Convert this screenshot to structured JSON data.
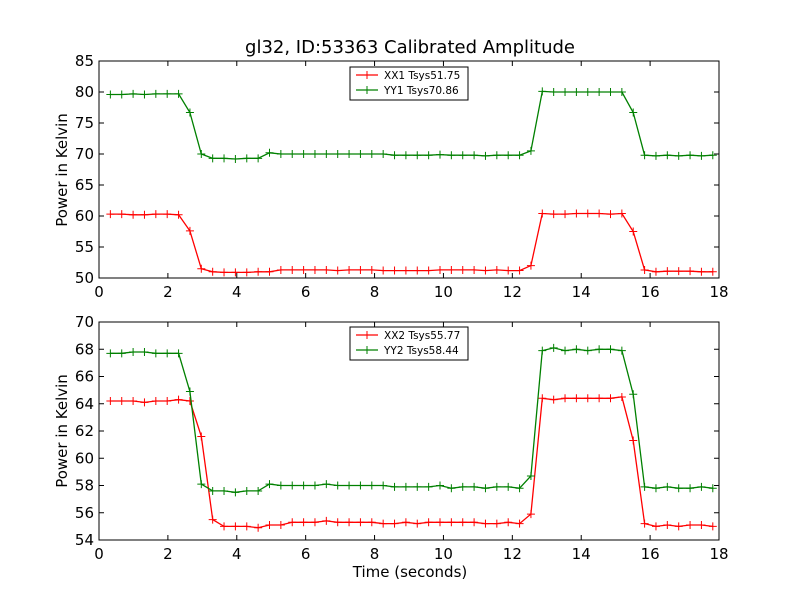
{
  "chart_data": [
    {
      "type": "line",
      "title": "gl32, ID:53363 Calibrated Amplitude",
      "xlabel": "",
      "ylabel": "Power in Kelvin",
      "xlim": [
        0,
        18
      ],
      "ylim": [
        50,
        85
      ],
      "xticks": [
        "0",
        "2",
        "4",
        "6",
        "8",
        "10",
        "12",
        "14",
        "16",
        "18"
      ],
      "yticks": [
        "50",
        "55",
        "60",
        "65",
        "70",
        "75",
        "80",
        "85"
      ],
      "legend_position": "top-center",
      "grid": false,
      "x": [
        0.33,
        0.66,
        0.99,
        1.32,
        1.65,
        1.98,
        2.31,
        2.64,
        2.97,
        3.3,
        3.63,
        3.96,
        4.29,
        4.62,
        4.95,
        5.28,
        5.61,
        5.94,
        6.27,
        6.6,
        6.93,
        7.26,
        7.59,
        7.92,
        8.25,
        8.58,
        8.91,
        9.24,
        9.57,
        9.9,
        10.23,
        10.56,
        10.89,
        11.22,
        11.55,
        11.88,
        12.21,
        12.54,
        12.87,
        13.2,
        13.53,
        13.86,
        14.19,
        14.52,
        14.85,
        15.18,
        15.51,
        15.84,
        16.17,
        16.5,
        16.83,
        17.16,
        17.49,
        17.82
      ],
      "series": [
        {
          "name": "XX1 Tsys51.75",
          "color": "#ff0000",
          "values": [
            60.3,
            60.3,
            60.2,
            60.2,
            60.3,
            60.3,
            60.2,
            57.6,
            51.5,
            51.0,
            50.9,
            50.9,
            50.9,
            51.0,
            51.0,
            51.3,
            51.3,
            51.3,
            51.3,
            51.3,
            51.2,
            51.3,
            51.3,
            51.3,
            51.2,
            51.2,
            51.2,
            51.2,
            51.2,
            51.3,
            51.3,
            51.3,
            51.3,
            51.2,
            51.3,
            51.2,
            51.2,
            52.0,
            60.4,
            60.3,
            60.3,
            60.4,
            60.4,
            60.4,
            60.3,
            60.4,
            57.5,
            51.3,
            51.0,
            51.1,
            51.1,
            51.1,
            51.0,
            51.0
          ]
        },
        {
          "name": "YY1 Tsys70.86",
          "color": "#008000",
          "values": [
            79.6,
            79.6,
            79.7,
            79.6,
            79.7,
            79.7,
            79.7,
            76.7,
            70.0,
            69.3,
            69.3,
            69.2,
            69.3,
            69.3,
            70.2,
            70.0,
            70.0,
            70.0,
            70.0,
            70.0,
            70.0,
            70.0,
            70.0,
            70.0,
            70.0,
            69.8,
            69.8,
            69.8,
            69.8,
            69.9,
            69.8,
            69.8,
            69.8,
            69.7,
            69.8,
            69.8,
            69.8,
            70.5,
            80.1,
            80.0,
            80.0,
            80.0,
            80.0,
            80.0,
            80.0,
            80.0,
            76.7,
            69.8,
            69.7,
            69.8,
            69.7,
            69.8,
            69.7,
            69.8
          ]
        }
      ]
    },
    {
      "type": "line",
      "title": "",
      "xlabel": "Time (seconds)",
      "ylabel": "Power in Kelvin",
      "xlim": [
        0,
        18
      ],
      "ylim": [
        54,
        70
      ],
      "xticks": [
        "0",
        "2",
        "4",
        "6",
        "8",
        "10",
        "12",
        "14",
        "16",
        "18"
      ],
      "yticks": [
        "54",
        "56",
        "58",
        "60",
        "62",
        "64",
        "66",
        "68",
        "70"
      ],
      "legend_position": "top-center",
      "grid": false,
      "x": [
        0.33,
        0.66,
        0.99,
        1.32,
        1.65,
        1.98,
        2.31,
        2.64,
        2.97,
        3.3,
        3.63,
        3.96,
        4.29,
        4.62,
        4.95,
        5.28,
        5.61,
        5.94,
        6.27,
        6.6,
        6.93,
        7.26,
        7.59,
        7.92,
        8.25,
        8.58,
        8.91,
        9.24,
        9.57,
        9.9,
        10.23,
        10.56,
        10.89,
        11.22,
        11.55,
        11.88,
        12.21,
        12.54,
        12.87,
        13.2,
        13.53,
        13.86,
        14.19,
        14.52,
        14.85,
        15.18,
        15.51,
        15.84,
        16.17,
        16.5,
        16.83,
        17.16,
        17.49,
        17.82
      ],
      "series": [
        {
          "name": "XX2 Tsys55.77",
          "color": "#ff0000",
          "values": [
            64.2,
            64.2,
            64.2,
            64.1,
            64.2,
            64.2,
            64.3,
            64.2,
            61.6,
            55.5,
            55.0,
            55.0,
            55.0,
            54.9,
            55.1,
            55.1,
            55.3,
            55.3,
            55.3,
            55.4,
            55.3,
            55.3,
            55.3,
            55.3,
            55.2,
            55.2,
            55.3,
            55.2,
            55.3,
            55.3,
            55.3,
            55.3,
            55.3,
            55.2,
            55.2,
            55.3,
            55.2,
            55.9,
            64.4,
            64.3,
            64.4,
            64.4,
            64.4,
            64.4,
            64.4,
            64.5,
            61.3,
            55.2,
            55.0,
            55.1,
            55.0,
            55.1,
            55.1,
            55.0
          ]
        },
        {
          "name": "YY2 Tsys58.44",
          "color": "#008000",
          "values": [
            67.7,
            67.7,
            67.8,
            67.8,
            67.7,
            67.7,
            67.7,
            64.9,
            58.1,
            57.6,
            57.6,
            57.5,
            57.6,
            57.6,
            58.1,
            58.0,
            58.0,
            58.0,
            58.0,
            58.1,
            58.0,
            58.0,
            58.0,
            58.0,
            58.0,
            57.9,
            57.9,
            57.9,
            57.9,
            58.0,
            57.8,
            57.9,
            57.9,
            57.8,
            57.9,
            57.9,
            57.8,
            58.7,
            67.9,
            68.1,
            67.9,
            68.0,
            67.9,
            68.0,
            68.0,
            67.9,
            64.7,
            57.9,
            57.8,
            57.9,
            57.8,
            57.8,
            57.9,
            57.8
          ]
        }
      ]
    }
  ]
}
